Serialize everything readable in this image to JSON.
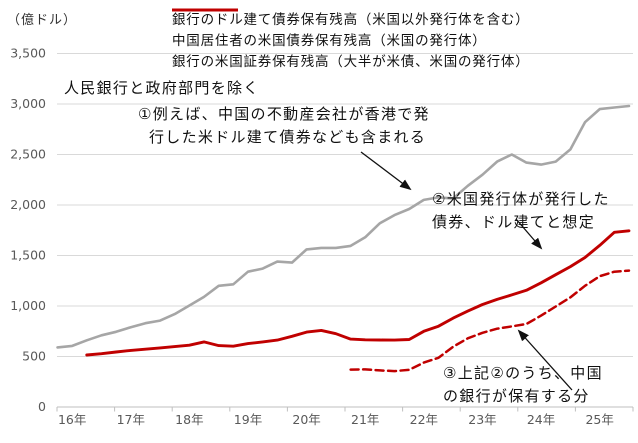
{
  "chart_data": {
    "type": "line",
    "unit_label": "（億ドル）",
    "note": "人民銀行と政府部門を除く",
    "x_tick_labels": [
      "16年",
      "17年",
      "18年",
      "19年",
      "20年",
      "21年",
      "22年",
      "23年",
      "24年",
      "25年"
    ],
    "y_ticks": [
      0,
      500,
      1000,
      1500,
      2000,
      2500,
      3000,
      3500
    ],
    "y_tick_labels": [
      "0",
      "500",
      "1,000",
      "1,500",
      "2,000",
      "2,500",
      "3,000",
      "3,500"
    ],
    "ylim": [
      0,
      3500
    ],
    "grid": "horizontal",
    "legend_position": "top",
    "x_unit": "quarterly, 2016-2025",
    "colors": {
      "gray_series": "#a6a6a6",
      "red_series": "#c00000",
      "gridline": "#d9d9d9",
      "axis": "#bfbfbf",
      "tick_text": "#595959",
      "annotation_text": "#111111"
    },
    "series": [
      {
        "name": "銀行のドル建て債券保有残高（米国以外発行体を含む）",
        "color": "#a6a6a6",
        "style": "solid",
        "width": 2.6,
        "values": [
          590,
          605,
          660,
          710,
          745,
          790,
          830,
          855,
          920,
          1005,
          1090,
          1200,
          1215,
          1340,
          1370,
          1440,
          1430,
          1560,
          1575,
          1575,
          1595,
          1680,
          1820,
          1900,
          1960,
          2050,
          2075,
          2065,
          2190,
          2300,
          2430,
          2500,
          2420,
          2400,
          2430,
          2550,
          2820,
          2950,
          2965,
          2980
        ]
      },
      {
        "name": "中国居住者の米国債券保有残高（米国の発行体）",
        "color": "#c00000",
        "style": "solid",
        "width": 2.9,
        "values": [
          null,
          null,
          515,
          528,
          545,
          560,
          572,
          585,
          598,
          612,
          645,
          608,
          602,
          628,
          645,
          662,
          700,
          742,
          758,
          726,
          672,
          665,
          663,
          662,
          668,
          750,
          800,
          880,
          950,
          1015,
          1065,
          1110,
          1155,
          1230,
          1310,
          1390,
          1480,
          1600,
          1730,
          1745
        ]
      },
      {
        "name": "銀行の米国証券保有残高（大半が米債、米国の発行体）",
        "color": "#c00000",
        "style": "dashed",
        "width": 2.5,
        "values": [
          null,
          null,
          null,
          null,
          null,
          null,
          null,
          null,
          null,
          null,
          null,
          null,
          null,
          null,
          null,
          null,
          null,
          null,
          null,
          null,
          370,
          372,
          362,
          355,
          368,
          440,
          487,
          597,
          680,
          735,
          775,
          798,
          822,
          905,
          995,
          1085,
          1200,
          1295,
          1340,
          1350
        ]
      }
    ],
    "annotations": [
      {
        "id": "1",
        "lines": [
          "①例えば、中国の不動産会社が香港で発",
          "行した米ドル建て債券なども含まれる"
        ]
      },
      {
        "id": "2",
        "lines": [
          "②米国発行体が発行した",
          "債券、ドル建てと想定"
        ]
      },
      {
        "id": "3",
        "lines": [
          "③上記②のうち、中国",
          "の銀行が保有する分"
        ]
      }
    ]
  }
}
